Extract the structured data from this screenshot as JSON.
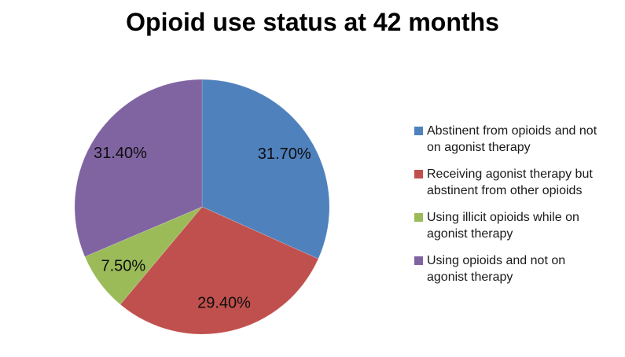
{
  "chart_data": {
    "type": "pie",
    "title": "Opioid use status at 42 months",
    "direction": "clockwise",
    "start_angle_deg": 0,
    "legend_position": "right",
    "data_labels": "percent-inside",
    "background_color": "#ffffff",
    "title_color": "#000000",
    "label_color": "#0d0d0d",
    "slices": [
      {
        "label": "Abstinent from opioids and not on agonist therapy",
        "value": 31.7,
        "display": "31.70%",
        "color": "#4F81BD"
      },
      {
        "label": "Receiving agonist therapy but abstinent from other opioids",
        "value": 29.4,
        "display": "29.40%",
        "color": "#C0504D"
      },
      {
        "label": "Using illicit opioids while on agonist therapy",
        "value": 7.5,
        "display": "7.50%",
        "color": "#9BBB59"
      },
      {
        "label": "Using opioids and not on agonist therapy",
        "value": 31.4,
        "display": "31.40%",
        "color": "#8064A2"
      }
    ]
  }
}
